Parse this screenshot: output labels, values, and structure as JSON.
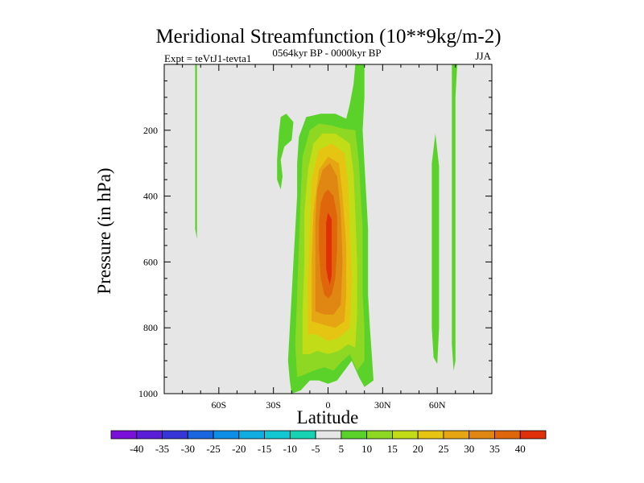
{
  "chart_data": {
    "type": "contour",
    "title": "Meridional Streamfunction (10**9kg/m-2)",
    "left_label": "Expt = teVtJ1-tevta1",
    "center_label": "0564kyr BP - 0000kyr BP",
    "right_label": "JJA",
    "xlabel": "Latitude",
    "ylabel": "Pressure (in hPa)",
    "xlim": [
      -90,
      90
    ],
    "ylim": [
      1000,
      0
    ],
    "x_ticks": [
      {
        "value": -60,
        "label": "60S"
      },
      {
        "value": -30,
        "label": "30S"
      },
      {
        "value": 0,
        "label": "0"
      },
      {
        "value": 30,
        "label": "30N"
      },
      {
        "value": 60,
        "label": "60N"
      }
    ],
    "y_ticks": [
      {
        "value": 200,
        "label": "200"
      },
      {
        "value": 400,
        "label": "400"
      },
      {
        "value": 600,
        "label": "600"
      },
      {
        "value": 800,
        "label": "800"
      },
      {
        "value": 1000,
        "label": "1000"
      }
    ],
    "background_color": "#e6e6e6",
    "colorbar": {
      "levels": [
        -40,
        -35,
        -30,
        -25,
        -20,
        -15,
        -10,
        -5,
        5,
        10,
        15,
        20,
        25,
        30,
        35,
        40
      ],
      "labels": [
        "-40",
        "-35",
        "-30",
        "-25",
        "-20",
        "-15",
        "-10",
        "-5",
        "5",
        "10",
        "15",
        "20",
        "25",
        "30",
        "35",
        "40"
      ],
      "colors": [
        "#7b10d8",
        "#5a1ed8",
        "#3535d8",
        "#1a66e0",
        "#0f8ee8",
        "#10aee0",
        "#12c6d2",
        "#18d2b4",
        "#e6e6e6",
        "#5ad22a",
        "#8ed824",
        "#c2dc18",
        "#e6c412",
        "#e6a614",
        "#e08612",
        "#e0660c",
        "#e0300a"
      ]
    },
    "contour_regions": [
      {
        "level": 5,
        "polygon": [
          [
            -20,
            1000
          ],
          [
            -21,
            960
          ],
          [
            -22,
            900
          ],
          [
            -21,
            800
          ],
          [
            -20,
            700
          ],
          [
            -19,
            600
          ],
          [
            -18,
            500
          ],
          [
            -17,
            400
          ],
          [
            -17,
            300
          ],
          [
            -16,
            220
          ],
          [
            -12,
            160
          ],
          [
            -4,
            150
          ],
          [
            4,
            150
          ],
          [
            10,
            165
          ],
          [
            12,
            120
          ],
          [
            14,
            60
          ],
          [
            15,
            0
          ],
          [
            20,
            0
          ],
          [
            20,
            100
          ],
          [
            19,
            200
          ],
          [
            20,
            300
          ],
          [
            21,
            400
          ],
          [
            22,
            500
          ],
          [
            22,
            600
          ],
          [
            22,
            700
          ],
          [
            23,
            800
          ],
          [
            24,
            880
          ],
          [
            25,
            960
          ],
          [
            20,
            980
          ],
          [
            17,
            950
          ],
          [
            13,
            900
          ],
          [
            9,
            930
          ],
          [
            5,
            960
          ],
          [
            0,
            970
          ],
          [
            -5,
            960
          ],
          [
            -10,
            960
          ],
          [
            -15,
            990
          ]
        ]
      },
      {
        "level": 5,
        "polygon": [
          [
            -27,
            210
          ],
          [
            -26,
            160
          ],
          [
            -23,
            150
          ],
          [
            -19,
            175
          ],
          [
            -20,
            230
          ],
          [
            -24,
            250
          ],
          [
            -26,
            290
          ],
          [
            -25,
            340
          ],
          [
            -26,
            380
          ],
          [
            -28,
            350
          ],
          [
            -28,
            290
          ]
        ]
      },
      {
        "level": 5,
        "polygon": [
          [
            -73,
            0
          ],
          [
            -72,
            0
          ],
          [
            -72,
            150
          ],
          [
            -72,
            300
          ],
          [
            -72,
            400
          ],
          [
            -72,
            500
          ],
          [
            -72,
            530
          ],
          [
            -73,
            500
          ],
          [
            -73,
            350
          ],
          [
            -73,
            200
          ]
        ]
      },
      {
        "level": 5,
        "polygon": [
          [
            57,
            300
          ],
          [
            59,
            210
          ],
          [
            61,
            310
          ],
          [
            61,
            400
          ],
          [
            61,
            500
          ],
          [
            61,
            600
          ],
          [
            61,
            700
          ],
          [
            61,
            800
          ],
          [
            60,
            910
          ],
          [
            58,
            890
          ],
          [
            57,
            800
          ],
          [
            57,
            700
          ],
          [
            57,
            600
          ],
          [
            57,
            500
          ],
          [
            57,
            400
          ]
        ]
      },
      {
        "level": 5,
        "polygon": [
          [
            68,
            0
          ],
          [
            71,
            0
          ],
          [
            70,
            100
          ],
          [
            70,
            200
          ],
          [
            70,
            300
          ],
          [
            70,
            400
          ],
          [
            70,
            500
          ],
          [
            70,
            600
          ],
          [
            70,
            700
          ],
          [
            70,
            800
          ],
          [
            70,
            900
          ],
          [
            69,
            930
          ],
          [
            68,
            850
          ],
          [
            68,
            700
          ],
          [
            68,
            550
          ],
          [
            68,
            400
          ],
          [
            68,
            250
          ],
          [
            68,
            100
          ]
        ]
      },
      {
        "level": 10,
        "polygon": [
          [
            -17,
            950
          ],
          [
            -18,
            850
          ],
          [
            -17,
            700
          ],
          [
            -16,
            550
          ],
          [
            -15,
            400
          ],
          [
            -14,
            280
          ],
          [
            -10,
            200
          ],
          [
            -5,
            180
          ],
          [
            2,
            185
          ],
          [
            8,
            195
          ],
          [
            15,
            200
          ],
          [
            17,
            300
          ],
          [
            18,
            400
          ],
          [
            19,
            500
          ],
          [
            19,
            600
          ],
          [
            19,
            700
          ],
          [
            20,
            800
          ],
          [
            20,
            900
          ],
          [
            16,
            930
          ],
          [
            12,
            880
          ],
          [
            8,
            900
          ],
          [
            3,
            930
          ],
          [
            -2,
            920
          ],
          [
            -8,
            930
          ],
          [
            -12,
            940
          ]
        ]
      },
      {
        "level": 15,
        "polygon": [
          [
            -14,
            880
          ],
          [
            -14,
            750
          ],
          [
            -13,
            600
          ],
          [
            -13,
            450
          ],
          [
            -11,
            320
          ],
          [
            -8,
            240
          ],
          [
            -3,
            210
          ],
          [
            4,
            210
          ],
          [
            12,
            240
          ],
          [
            14,
            330
          ],
          [
            15,
            450
          ],
          [
            16,
            600
          ],
          [
            16,
            750
          ],
          [
            15,
            860
          ],
          [
            11,
            850
          ],
          [
            6,
            870
          ],
          [
            0,
            880
          ],
          [
            -6,
            870
          ],
          [
            -10,
            880
          ]
        ]
      },
      {
        "level": 20,
        "polygon": [
          [
            -11,
            820
          ],
          [
            -11,
            650
          ],
          [
            -10,
            500
          ],
          [
            -9,
            350
          ],
          [
            -5,
            260
          ],
          [
            2,
            240
          ],
          [
            9,
            270
          ],
          [
            11,
            360
          ],
          [
            12,
            500
          ],
          [
            13,
            650
          ],
          [
            12,
            800
          ],
          [
            6,
            830
          ],
          [
            0,
            840
          ],
          [
            -6,
            820
          ]
        ]
      },
      {
        "level": 25,
        "polygon": [
          [
            -9,
            780
          ],
          [
            -9,
            600
          ],
          [
            -8,
            450
          ],
          [
            -5,
            320
          ],
          [
            0,
            280
          ],
          [
            6,
            300
          ],
          [
            8,
            400
          ],
          [
            10,
            550
          ],
          [
            10,
            700
          ],
          [
            9,
            780
          ],
          [
            4,
            800
          ],
          [
            -3,
            790
          ]
        ]
      },
      {
        "level": 30,
        "polygon": [
          [
            -7,
            750
          ],
          [
            -7,
            600
          ],
          [
            -7,
            480
          ],
          [
            -6,
            380
          ],
          [
            -3,
            320
          ],
          [
            1,
            300
          ],
          [
            5,
            340
          ],
          [
            7,
            450
          ],
          [
            8,
            600
          ],
          [
            7,
            730
          ],
          [
            3,
            760
          ],
          [
            -2,
            760
          ]
        ]
      },
      {
        "level": 35,
        "polygon": [
          [
            -5,
            560
          ],
          [
            -5,
            480
          ],
          [
            -4,
            420
          ],
          [
            -2,
            390
          ],
          [
            0,
            380
          ],
          [
            3,
            400
          ],
          [
            5,
            460
          ],
          [
            5,
            560
          ],
          [
            4,
            650
          ],
          [
            2,
            700
          ],
          [
            0,
            710
          ],
          [
            -2,
            700
          ],
          [
            -4,
            650
          ]
        ]
      },
      {
        "level": 40,
        "polygon": [
          [
            -1,
            560
          ],
          [
            -1,
            480
          ],
          [
            0,
            450
          ],
          [
            2,
            470
          ],
          [
            2,
            560
          ],
          [
            2,
            640
          ],
          [
            1,
            670
          ],
          [
            0,
            650
          ],
          [
            -1,
            620
          ]
        ]
      }
    ]
  }
}
